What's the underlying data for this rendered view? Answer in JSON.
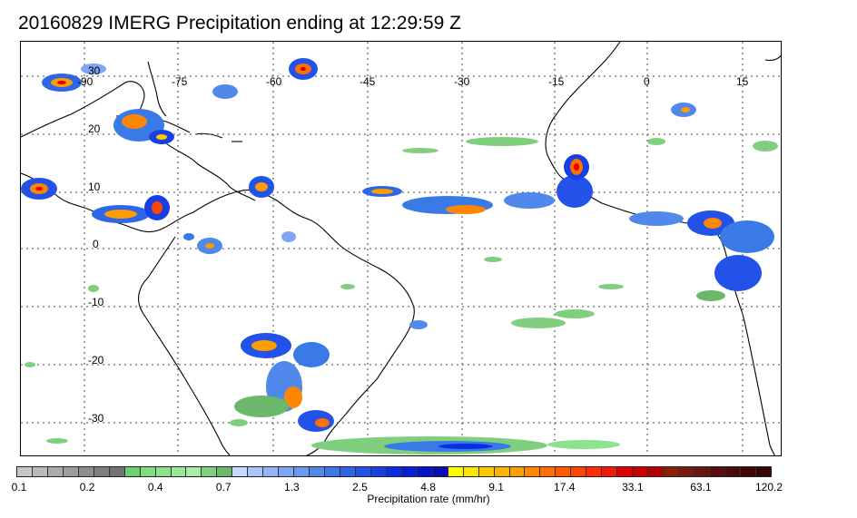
{
  "title": "20160829 IMERG Precipitation ending at 12:29:59 Z",
  "map": {
    "lon_labels": [
      "-90",
      "-75",
      "-60",
      "-45",
      "-30",
      "-15",
      "0",
      "15"
    ],
    "lat_labels": [
      "30",
      "20",
      "10",
      "0",
      "-10",
      "-20",
      "-30"
    ]
  },
  "colorbar": {
    "label": "Precipitation rate (mm/hr)",
    "tick_labels": [
      "0.1",
      "0.2",
      "0.4",
      "0.7",
      "1.3",
      "2.5",
      "4.8",
      "9.1",
      "17.4",
      "33.1",
      "63.1",
      "120.2"
    ],
    "colors": [
      "#c8c8c8",
      "#b9b9b9",
      "#aaaaaa",
      "#9c9c9c",
      "#8e8e8e",
      "#808080",
      "#737373",
      "#6ed16e",
      "#7ede7e",
      "#8ce38c",
      "#9ae89a",
      "#a9eda9",
      "#7fcf7f",
      "#6ab86a",
      "#c6d8ff",
      "#aac4ff",
      "#95b5f8",
      "#7fa6f4",
      "#6a97f0",
      "#5088ec",
      "#3a7ae6",
      "#2f66e8",
      "#2252e8",
      "#1640e6",
      "#0a2ee4",
      "#0620d8",
      "#0414c8",
      "#0a0ab8",
      "#ffff00",
      "#ffe600",
      "#ffcc00",
      "#ffb400",
      "#ff9c00",
      "#ff8600",
      "#ff6e00",
      "#ff5a00",
      "#ff4600",
      "#ff2e00",
      "#f21a00",
      "#e00000",
      "#cc0000",
      "#b40000",
      "#8c2200",
      "#7a1a10",
      "#6a1410",
      "#5a0e0e",
      "#4e0a0a",
      "#420606",
      "#3a0404"
    ]
  }
}
